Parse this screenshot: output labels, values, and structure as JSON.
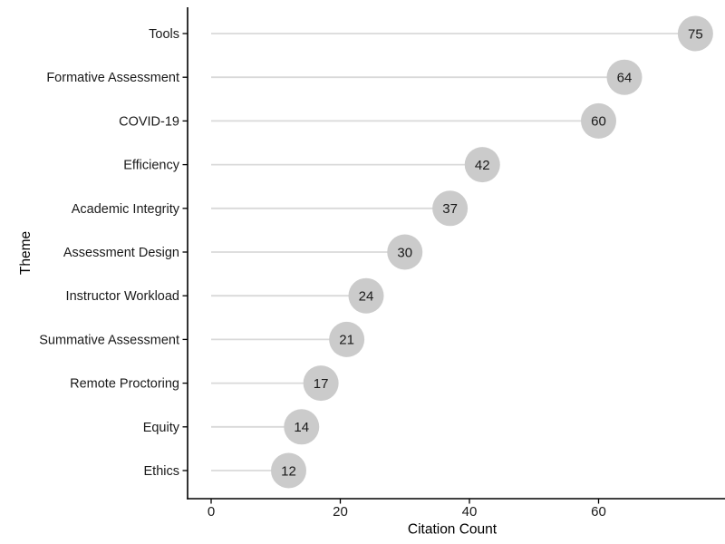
{
  "chart_data": {
    "type": "scatter",
    "subtype": "lollipop",
    "title": "",
    "xlabel": "Citation Count",
    "ylabel": "Theme",
    "categories": [
      "Tools",
      "Formative Assessment",
      "COVID-19",
      "Efficiency",
      "Academic Integrity",
      "Assessment Design",
      "Instructor Workload",
      "Summative Assessment",
      "Remote Proctoring",
      "Equity",
      "Ethics"
    ],
    "values": [
      75,
      64,
      60,
      42,
      37,
      30,
      24,
      21,
      17,
      14,
      12
    ],
    "point_labels": [
      "75",
      "64",
      "60",
      "42",
      "37",
      "30",
      "24",
      "21",
      "17",
      "14",
      "12"
    ],
    "x_ticks": [
      0,
      20,
      40,
      60
    ],
    "xlim": [
      0,
      79.6
    ],
    "grid": false,
    "legend": false,
    "orientation": "horizontal",
    "colors": {
      "point_fill": "#cbcbcb",
      "segment": "#d9d9d9",
      "axis_line": "#000000",
      "axis_text": "#1a1a1a",
      "axis_title": "#000000",
      "point_label_text": "#1a1a1a",
      "background": "#ffffff"
    }
  }
}
